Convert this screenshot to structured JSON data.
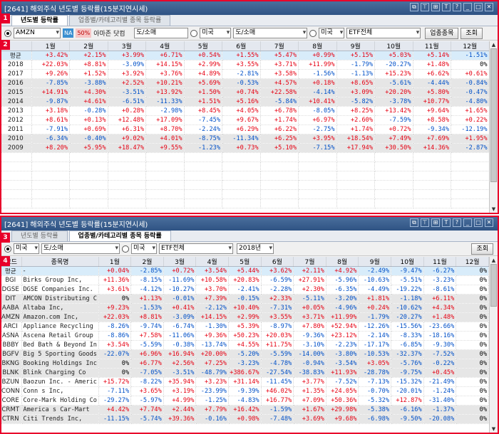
{
  "markers": [
    "1",
    "2",
    "3",
    "4"
  ],
  "w1": {
    "title": "[2641] 해외주식 년도별 등락률(15분지연시세)",
    "tabs": [
      "년도별 등락률",
      "업종별/카테고리별 종목 등락률"
    ],
    "ticker": "AMZN",
    "na": "NA",
    "pct": "50%",
    "stock_name": "아마존 닷컴",
    "sector": "도/소매",
    "country": "미국",
    "country_sector": "도/소매",
    "country2": "미국",
    "etf": "ETF전체",
    "btn_sector": "업종종목",
    "btn_query": "조회",
    "headers": [
      "",
      "1월",
      "2월",
      "3월",
      "4월",
      "5월",
      "6월",
      "7월",
      "8월",
      "9월",
      "10월",
      "11월",
      "12월"
    ],
    "rows": [
      {
        "label": "평균",
        "cls": "avg",
        "v": [
          "+3.42%",
          "+2.15%",
          "+3.99%",
          "+6.71%",
          "+0.54%",
          "+1.55%",
          "+5.47%",
          "+0.99%",
          "+5.15%",
          "+5.03%",
          "+5.14%",
          "-1.51%"
        ]
      },
      {
        "label": "2018",
        "cls": "alt",
        "v": [
          "+22.03%",
          "+8.81%",
          "-3.09%",
          "+14.15%",
          "+2.99%",
          "+3.55%",
          "+3.71%",
          "+11.99%",
          "-1.79%",
          "-20.27%",
          "+1.48%",
          "0%"
        ]
      },
      {
        "label": "2017",
        "cls": "alt",
        "v": [
          "+9.26%",
          "+1.52%",
          "+3.92%",
          "+3.76%",
          "+4.89%",
          "-2.81%",
          "+3.58%",
          "-1.56%",
          "-1.13%",
          "+15.23%",
          "+6.62%",
          "+0.61%"
        ]
      },
      {
        "label": "2016",
        "cls": "grp",
        "v": [
          "-7.85%",
          "-3.88%",
          "+2.52%",
          "+10.21%",
          "+5.69%",
          "-0.53%",
          "+4.57%",
          "+0.18%",
          "+8.65%",
          "-5.61%",
          "-4.44%",
          "-0.84%"
        ]
      },
      {
        "label": "2015",
        "cls": "grp",
        "v": [
          "+14.91%",
          "+4.30%",
          "-3.51%",
          "+13.92%",
          "+1.50%",
          "+0.74%",
          "+22.58%",
          "-4.14%",
          "+3.09%",
          "+20.20%",
          "+5.80%",
          "-0.47%"
        ]
      },
      {
        "label": "2014",
        "cls": "grp",
        "v": [
          "-9.87%",
          "+4.61%",
          "-6.51%",
          "-11.33%",
          "+1.51%",
          "+5.16%",
          "-5.84%",
          "+10.41%",
          "-5.82%",
          "-3.78%",
          "+10.77%",
          "-4.80%"
        ]
      },
      {
        "label": "2013",
        "cls": "alt",
        "v": [
          "+3.18%",
          "-0.28%",
          "+0.28%",
          "-2.98%",
          "+8.45%",
          "+4.05%",
          "+6.78%",
          "-8.05%",
          "+8.25%",
          "+13.42%",
          "+9.64%",
          "+1.65%"
        ]
      },
      {
        "label": "2012",
        "cls": "alt",
        "v": [
          "+8.61%",
          "+0.13%",
          "+12.48%",
          "+17.09%",
          "-7.45%",
          "+9.67%",
          "+1.74%",
          "+6.97%",
          "+2.60%",
          "-7.59%",
          "+8.58%",
          "+0.22%"
        ]
      },
      {
        "label": "2011",
        "cls": "alt",
        "v": [
          "-7.91%",
          "+0.69%",
          "+6.31%",
          "+8.70%",
          "-2.24%",
          "+6.29%",
          "+6.22%",
          "-2.75%",
          "+1.74%",
          "+0.72%",
          "-9.34%",
          "-12.19%"
        ]
      },
      {
        "label": "2010",
        "cls": "grp",
        "v": [
          "-6.34%",
          "-0.40%",
          "+9.02%",
          "+4.01%",
          "-8.75%",
          "-11.34%",
          "+6.25%",
          "+3.95%",
          "+18.54%",
          "+7.49%",
          "+7.69%",
          "+1.95%"
        ]
      },
      {
        "label": "2009",
        "cls": "grp",
        "v": [
          "+8.20%",
          "+5.95%",
          "+18.47%",
          "+9.55%",
          "-1.23%",
          "+0.73%",
          "+5.10%",
          "-7.15%",
          "+17.94%",
          "+30.50%",
          "+14.36%",
          "-2.87%"
        ]
      }
    ]
  },
  "w2": {
    "title": "[2641] 해외주식 년도별 등락률(15분지연시세)",
    "tabs": [
      "년도별 등락률",
      "업종별/카테고리별 종목 등락률"
    ],
    "country": "미국",
    "sector": "도/소매",
    "country2": "미국",
    "etf": "ETF전체",
    "year": "2018년",
    "btn_query": "조회",
    "headers": [
      "코드",
      "종목명",
      "1월",
      "2월",
      "3월",
      "4월",
      "5월",
      "6월",
      "7월",
      "8월",
      "9월",
      "10월",
      "11월",
      "12월"
    ],
    "rows": [
      {
        "code": "평균",
        "name": "-",
        "cls": "avg",
        "v": [
          "+0.04%",
          "-2.85%",
          "+0.72%",
          "+3.54%",
          "+5.44%",
          "+3.62%",
          "+2.11%",
          "+4.92%",
          "-2.49%",
          "-9.47%",
          "-6.27%",
          "0%"
        ]
      },
      {
        "code": "BGI",
        "name": "Birks Group Inc,",
        "cls": "alt",
        "v": [
          "+11.36%",
          "-8.15%",
          "-11.69%",
          "+10.58%",
          "+20.83%",
          "-6.59%",
          "+27.91%",
          "-5.96%",
          "-10.63%",
          "-5.51%",
          "-3.23%",
          "0%"
        ]
      },
      {
        "code": "DGSE",
        "name": "DGSE Companies Inc.",
        "cls": "alt",
        "v": [
          "+3.61%",
          "-4.12%",
          "-10.27%",
          "+3.70%",
          "-2.41%",
          "-2.28%",
          "+2.30%",
          "-6.35%",
          "-4.49%",
          "-19.22%",
          "-8.61%",
          "0%"
        ]
      },
      {
        "code": "DIT",
        "name": "AMCON Distributing C",
        "cls": "grp",
        "v": [
          "0%",
          "+1.13%",
          "-0.01%",
          "+7.39%",
          "-0.15%",
          "+2.33%",
          "-5.11%",
          "-3.20%",
          "+1.81%",
          "-1.18%",
          "+6.11%",
          "0%"
        ]
      },
      {
        "code": "AABA",
        "name": "Altaba Inc,",
        "cls": "grp",
        "v": [
          "+9.23%",
          "-1.53%",
          "+0.41%",
          "-2.12%",
          "+10.40%",
          "-7.31%",
          "+0.05%",
          "-4.96%",
          "+0.24%",
          "-10.62%",
          "+4.34%",
          "0%"
        ]
      },
      {
        "code": "AMZN",
        "name": "Amazon.com Inc,",
        "cls": "grp",
        "v": [
          "+22.03%",
          "+8.81%",
          "-3.09%",
          "+14.15%",
          "+2.99%",
          "+3.55%",
          "+3.71%",
          "+11.99%",
          "-1.79%",
          "-20.27%",
          "+1.48%",
          "0%"
        ]
      },
      {
        "code": "ARCI",
        "name": "Appliance Recycling",
        "cls": "alt",
        "v": [
          "-8.26%",
          "-9.74%",
          "-6.74%",
          "-1.30%",
          "+5.39%",
          "-8.97%",
          "+7.80%",
          "+52.94%",
          "-12.26%",
          "-15.56%",
          "-23.66%",
          "0%"
        ]
      },
      {
        "code": "ASNA",
        "name": "Ascena Retail Group",
        "cls": "alt",
        "v": [
          "-8.86%",
          "+7.58%",
          "-11.06%",
          "+9.36%",
          "+50.23%",
          "+20.03%",
          "-9.36%",
          "+23.12%",
          "-2.14%",
          "-8.33%",
          "-18.16%",
          "0%"
        ]
      },
      {
        "code": "BBBY",
        "name": "Bed Bath & Beyond In",
        "cls": "alt",
        "v": [
          "+3.54%",
          "-5.59%",
          "-0.38%",
          "-13.74%",
          "+4.55%",
          "+11.75%",
          "-3.10%",
          "-2.23%",
          "-17.17%",
          "-6.85%",
          "-9.30%",
          "0%"
        ]
      },
      {
        "code": "BGFV",
        "name": "Big 5 Sporting Goods",
        "cls": "grp",
        "v": [
          "-22.07%",
          "+6.96%",
          "+16.94%",
          "+20.00%",
          "-5.20%",
          "-5.59%",
          "-14.00%",
          "-3.80%",
          "-10.53%",
          "-32.37%",
          "-7.52%",
          "0%"
        ]
      },
      {
        "code": "BKNG",
        "name": "Booking Holdings Inc",
        "cls": "grp",
        "v": [
          "0%",
          "+6.77%",
          "+2.56%",
          "+7.25%",
          "-3.23%",
          "-4.78%",
          "-0.94%",
          "-3.54%",
          "+3.05%",
          "-5.76%",
          "-0.22%",
          "0%"
        ]
      },
      {
        "code": "BLNK",
        "name": "Blink Charging Co",
        "cls": "grp",
        "v": [
          "0%",
          "-7.05%",
          "-3.51%",
          "-48.79%",
          "+386.67%",
          "-27.54%",
          "-38.83%",
          "+11.93%",
          "-28.78%",
          "-9.75%",
          "+0.45%",
          "0%"
        ]
      },
      {
        "code": "BZUN",
        "name": "Baozun Inc. - Americ",
        "cls": "alt",
        "v": [
          "+15.72%",
          "-8.22%",
          "+35.94%",
          "+3.23%",
          "+31.14%",
          "-11.45%",
          "+3.77%",
          "-7.52%",
          "-7.13%",
          "-15.32%",
          "-21.49%",
          "0%"
        ]
      },
      {
        "code": "CONN",
        "name": "Conn s Inc,",
        "cls": "alt",
        "v": [
          "-7.11%",
          "+3.65%",
          "+3.19%",
          "-23.99%",
          "-9.39%",
          "+46.02%",
          "+1.35%",
          "+24.05%",
          "-0.70%",
          "-20.01%",
          "-1.24%",
          "0%"
        ]
      },
      {
        "code": "CORE",
        "name": "Core-Mark Holding Co",
        "cls": "alt",
        "v": [
          "-29.27%",
          "-5.97%",
          "+4.99%",
          "-1.25%",
          "-4.83%",
          "+16.77%",
          "+7.09%",
          "+50.36%",
          "-5.32%",
          "+12.87%",
          "-31.40%",
          "0%"
        ]
      },
      {
        "code": "CRMT",
        "name": "America s Car-Mart",
        "cls": "grp",
        "v": [
          "+4.42%",
          "+7.74%",
          "+2.44%",
          "+7.79%",
          "+16.42%",
          "-1.59%",
          "+1.67%",
          "+29.98%",
          "-5.38%",
          "-6.16%",
          "-1.37%",
          "0%"
        ]
      },
      {
        "code": "CTRN",
        "name": "Citi Trends Inc,",
        "cls": "grp",
        "v": [
          "-11.15%",
          "-5.74%",
          "+39.36%",
          "-0.16%",
          "+0.98%",
          "-7.48%",
          "+3.69%",
          "+9.68%",
          "-6.98%",
          "-9.50%",
          "-20.08%",
          "0%"
        ]
      }
    ]
  }
}
